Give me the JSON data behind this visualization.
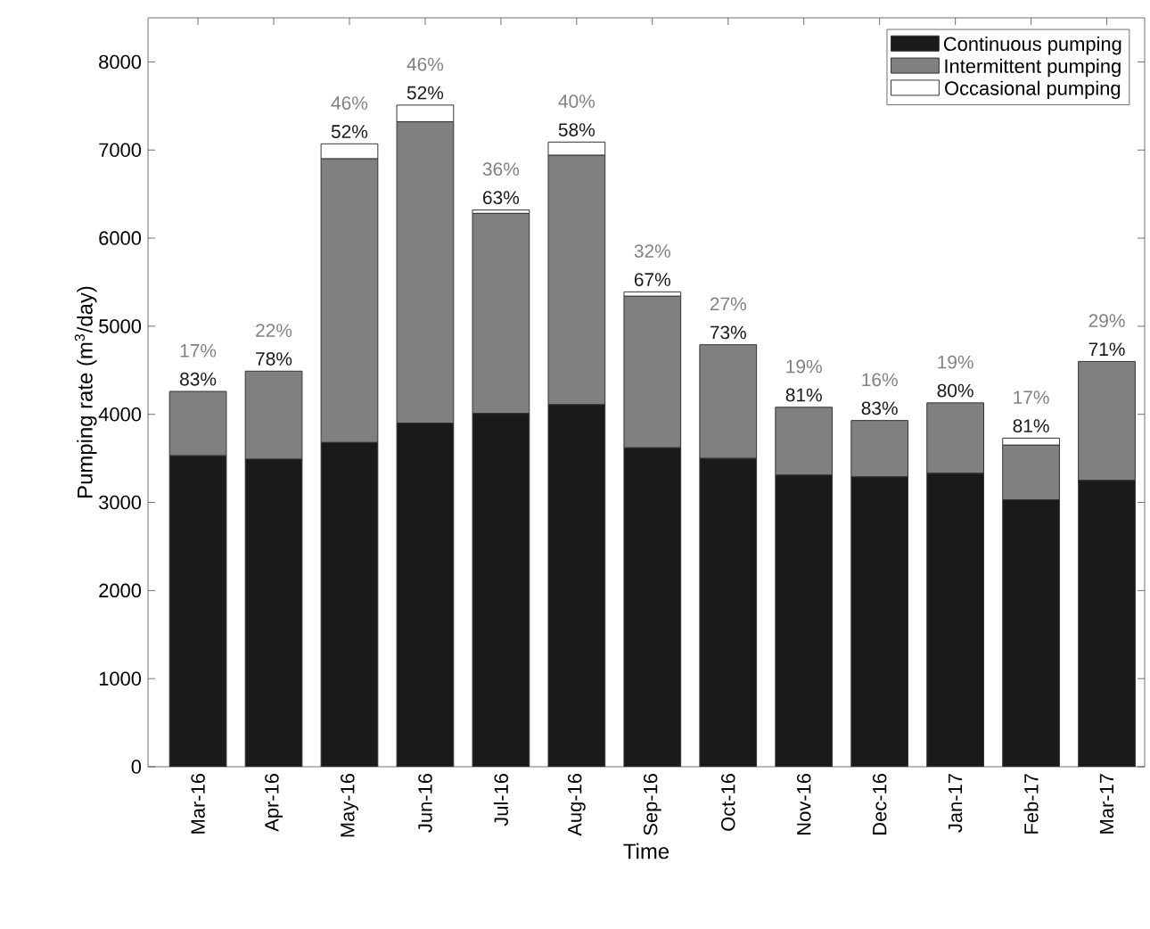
{
  "chart_data": {
    "type": "bar",
    "stacked": true,
    "xlabel": "Time",
    "ylabel": "Pumping rate (m$^{3}$/day)",
    "categories": [
      "Mar-16",
      "Apr-16",
      "May-16",
      "Jun-16",
      "Jul-16",
      "Aug-16",
      "Sep-16",
      "Oct-16",
      "Nov-16",
      "Dec-16",
      "Jan-17",
      "Feb-17",
      "Mar-17"
    ],
    "series": [
      {
        "name": "Continuous pumping",
        "color": "#1a1a1a",
        "values": [
          3530,
          3490,
          3680,
          3900,
          4010,
          4110,
          3620,
          3500,
          3310,
          3290,
          3330,
          3030,
          3250
        ]
      },
      {
        "name": "Intermittent pumping",
        "color": "#808080",
        "values": [
          730,
          1000,
          3220,
          3420,
          2270,
          2830,
          1720,
          1290,
          770,
          640,
          800,
          620,
          1350
        ]
      },
      {
        "name": "Occasional pumping",
        "color": "#ffffff",
        "values": [
          0,
          0,
          170,
          190,
          40,
          150,
          50,
          0,
          0,
          0,
          0,
          80,
          0
        ]
      }
    ],
    "annotations": [
      {
        "text": "83%",
        "x": "Mar-16",
        "y": 4260
      },
      {
        "text": "17%",
        "x": "Mar-16",
        "y": 4260
      },
      {
        "text": "78%",
        "x": "Apr-16",
        "y": 4490
      },
      {
        "text": "22%",
        "x": "Apr-16",
        "y": 4490
      },
      {
        "text": "52%",
        "x": "May-16",
        "y": 7070
      },
      {
        "text": "46%",
        "x": "May-16",
        "y": 7070
      },
      {
        "text": "52%",
        "x": "Jun-16",
        "y": 7510
      },
      {
        "text": "46%",
        "x": "Jun-16",
        "y": 7510
      },
      {
        "text": "63%",
        "x": "Jul-16",
        "y": 6320
      },
      {
        "text": "36%",
        "x": "Jul-16",
        "y": 6320
      },
      {
        "text": "58%",
        "x": "Aug-16",
        "y": 7090
      },
      {
        "text": "40%",
        "x": "Aug-16",
        "y": 7090
      },
      {
        "text": "67%",
        "x": "Sep-16",
        "y": 5390
      },
      {
        "text": "32%",
        "x": "Sep-16",
        "y": 5390
      },
      {
        "text": "73%",
        "x": "Oct-16",
        "y": 4790
      },
      {
        "text": "27%",
        "x": "Oct-16",
        "y": 4790
      },
      {
        "text": "81%",
        "x": "Nov-16",
        "y": 4080
      },
      {
        "text": "19%",
        "x": "Nov-16",
        "y": 4080
      },
      {
        "text": "83%",
        "x": "Dec-16",
        "y": 3930
      },
      {
        "text": "16%",
        "x": "Dec-16",
        "y": 3930
      },
      {
        "text": "80%",
        "x": "Jan-17",
        "y": 4130
      },
      {
        "text": "19%",
        "x": "Jan-17",
        "y": 4130
      },
      {
        "text": "81%",
        "x": "Feb-17",
        "y": 3730
      },
      {
        "text": "17%",
        "x": "Feb-17",
        "y": 3730
      },
      {
        "text": "71%",
        "x": "Mar-17",
        "y": 4600
      },
      {
        "text": "29%",
        "x": "Mar-17",
        "y": 4600
      }
    ],
    "ylim": [
      0,
      8500
    ],
    "yticks": [
      0,
      1000,
      2000,
      3000,
      4000,
      5000,
      6000,
      7000,
      8000
    ],
    "legend": "top right"
  }
}
